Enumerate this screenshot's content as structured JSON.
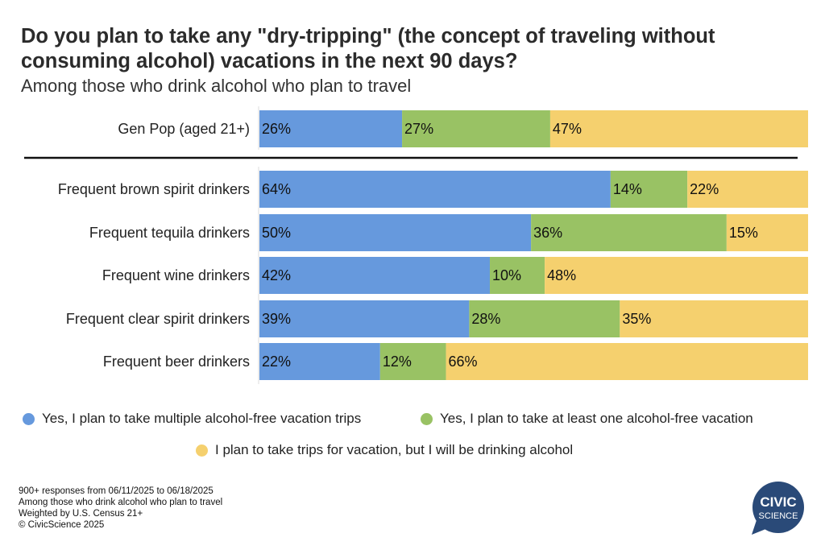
{
  "chart_data": {
    "type": "bar",
    "orientation": "horizontal",
    "stacked": true,
    "title": "Do you plan to take any \"dry-tripping\" (the concept of traveling without consuming alcohol) vacations in the next 90 days?",
    "subtitle": "Among those who drink alcohol who plan to travel",
    "categories": [
      "Gen Pop (aged 21+)",
      "Frequent brown spirit drinkers",
      "Frequent tequila drinkers",
      "Frequent wine drinkers",
      "Frequent clear spirit drinkers",
      "Frequent beer drinkers"
    ],
    "series": [
      {
        "name": "Yes, I plan to take multiple alcohol-free vacation trips",
        "color": "#6699DD",
        "values": [
          26,
          64,
          50,
          42,
          39,
          22
        ]
      },
      {
        "name": "Yes, I plan to take at least one alcohol-free vacation",
        "color": "#99C264",
        "values": [
          27,
          14,
          36,
          10,
          28,
          12
        ]
      },
      {
        "name": "I plan to take trips for vacation, but I will be drinking alcohol",
        "color": "#F5D06E",
        "values": [
          47,
          22,
          15,
          48,
          35,
          66
        ]
      }
    ],
    "value_suffix": "%",
    "xlim": [
      0,
      100
    ],
    "grid": false,
    "legend_position": "bottom"
  },
  "footer": {
    "lines": [
      "900+ responses from 06/11/2025 to 06/18/2025",
      "Among those who drink alcohol who plan to travel",
      "Weighted by U.S. Census 21+",
      "© CivicScience 2025"
    ]
  },
  "logo": {
    "text": [
      "CIVIC",
      "SCIENCE"
    ],
    "color": "#2A4A78"
  }
}
